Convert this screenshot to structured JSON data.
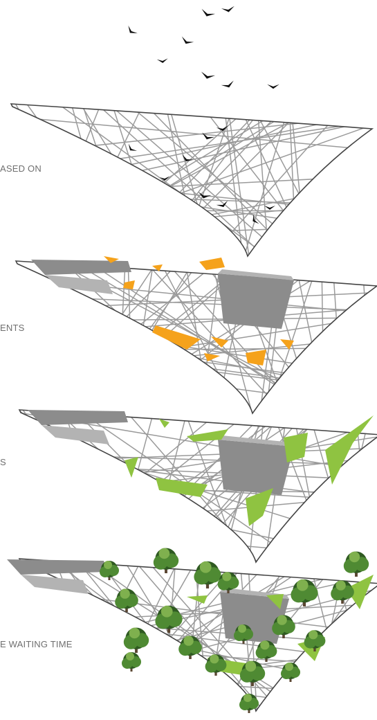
{
  "captions": {
    "panel1": "ASED ON",
    "panel2": "ENTS",
    "panel3": "S",
    "panel4": "E WAITING TIME"
  },
  "colors": {
    "background": "#ffffff",
    "lines": "#9a9a9a",
    "outline": "#444444",
    "bird": "#111111",
    "building": "#8c8c8c",
    "building_top": "#b3b3b3",
    "orange_patch": "#f5a21b",
    "green_patch": "#8fc341",
    "tree_dark": "#2f5a22",
    "tree_mid": "#4f8a33",
    "tree_light": "#7fb04e",
    "trunk": "#5a4632",
    "caption": "#6f6f6f"
  },
  "icons": [
    "bird-icon",
    "tree-icon",
    "building-shape"
  ]
}
